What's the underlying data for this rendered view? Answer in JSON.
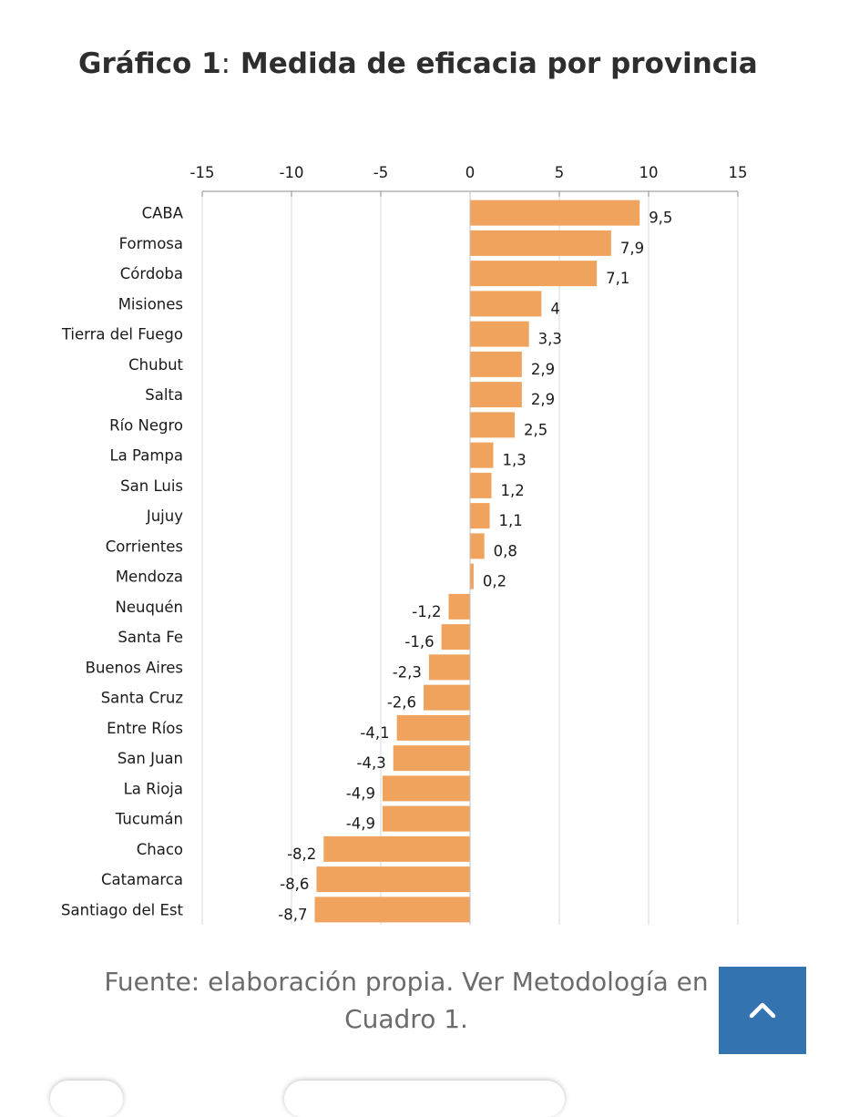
{
  "header": {
    "title_bold": "Gráfico 1",
    "title_sep": ":",
    "title_rest": " Medida de eficacia por provincia"
  },
  "chart_data": {
    "type": "bar",
    "orientation": "horizontal",
    "title": "Gráfico 1: Medida de eficacia por provincia",
    "xlim": [
      -15,
      15
    ],
    "xticks": [
      "-15",
      "-10",
      "-5",
      "0",
      "5",
      "10",
      "15"
    ],
    "xtick_values": [
      -15,
      -10,
      -5,
      0,
      5,
      10,
      15
    ],
    "bar_color": "#f0a35c",
    "grid": true,
    "categories": [
      "CABA",
      "Formosa",
      "Córdoba",
      "Misiones",
      "Tierra del Fuego",
      "Chubut",
      "Salta",
      "Río Negro",
      "La Pampa",
      "San Luis",
      "Jujuy",
      "Corrientes",
      "Mendoza",
      "Neuquén",
      "Santa Fe",
      "Buenos Aires",
      "Santa Cruz",
      "Entre Ríos",
      "San Juan",
      "La Rioja",
      "Tucumán",
      "Chaco",
      "Catamarca",
      "Santiago del Est"
    ],
    "values": [
      9.5,
      7.9,
      7.1,
      4,
      3.3,
      2.9,
      2.9,
      2.5,
      1.3,
      1.2,
      1.1,
      0.8,
      0.2,
      -1.2,
      -1.6,
      -2.3,
      -2.6,
      -4.1,
      -4.3,
      -4.9,
      -4.9,
      -8.2,
      -8.6,
      -8.7
    ],
    "value_labels": [
      "9,5",
      "7,9",
      "7,1",
      "4",
      "3,3",
      "2,9",
      "2,9",
      "2,5",
      "1,3",
      "1,2",
      "1,1",
      "0,8",
      "0,2",
      "-1,2",
      "-1,6",
      "-2,3",
      "-2,6",
      "-4,1",
      "-4,3",
      "-4,9",
      "-4,9",
      "-8,2",
      "-8,6",
      "-8,7"
    ]
  },
  "footer": {
    "caption": "Fuente: elaboración propia. Ver Metodología en Cuadro 1.",
    "back_to_top_icon": "chevron-up-icon",
    "accent_color": "#3373b0"
  }
}
